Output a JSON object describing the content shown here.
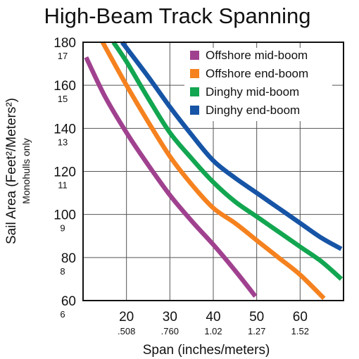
{
  "chart_data": {
    "type": "line",
    "title": "High-Beam Track Spanning",
    "xlabel": "Span (inches/meters)",
    "ylabel": "Sail Area (Feet²/Meters²)",
    "ylabel_sub": "Monohulls only",
    "xlim": [
      10,
      70
    ],
    "ylim": [
      60,
      180
    ],
    "x_ticks": [
      {
        "value": 20,
        "label": "20",
        "sub": ".508"
      },
      {
        "value": 30,
        "label": "30",
        "sub": ".760"
      },
      {
        "value": 40,
        "label": "40",
        "sub": "1.02"
      },
      {
        "value": 50,
        "label": "50",
        "sub": "1.27"
      },
      {
        "value": 60,
        "label": "60",
        "sub": "1.52"
      }
    ],
    "y_ticks": [
      {
        "value": 180,
        "label": "180",
        "sub": "17"
      },
      {
        "value": 160,
        "label": "160",
        "sub": "15"
      },
      {
        "value": 140,
        "label": "140",
        "sub": "13"
      },
      {
        "value": 120,
        "label": "120",
        "sub": "11"
      },
      {
        "value": 100,
        "label": "100",
        "sub": "9"
      },
      {
        "value": 80,
        "label": "80",
        "sub": "8"
      },
      {
        "value": 60,
        "label": "60",
        "sub": "6"
      }
    ],
    "grid": true,
    "legend_position": "top-right",
    "series": [
      {
        "name": "Offshore mid-boom",
        "color": "#a0418f",
        "points": [
          [
            10.7,
            173
          ],
          [
            15,
            155
          ],
          [
            20,
            138
          ],
          [
            25,
            123
          ],
          [
            30,
            109
          ],
          [
            35,
            97
          ],
          [
            40,
            86
          ],
          [
            45,
            74
          ],
          [
            49.7,
            62
          ]
        ]
      },
      {
        "name": "Offshore end-boom",
        "color": "#f5821f",
        "points": [
          [
            14.5,
            180
          ],
          [
            20,
            160
          ],
          [
            25,
            143
          ],
          [
            30,
            127
          ],
          [
            35,
            114
          ],
          [
            40,
            103
          ],
          [
            45,
            96
          ],
          [
            50,
            88
          ],
          [
            55,
            80
          ],
          [
            60,
            72
          ],
          [
            65.5,
            61
          ]
        ]
      },
      {
        "name": "Dinghy mid-boom",
        "color": "#12a650",
        "points": [
          [
            17,
            180
          ],
          [
            20,
            171
          ],
          [
            25,
            154
          ],
          [
            30,
            138
          ],
          [
            35,
            126
          ],
          [
            40,
            115
          ],
          [
            45,
            106
          ],
          [
            50,
            99
          ],
          [
            55,
            92
          ],
          [
            60,
            85
          ],
          [
            65,
            78
          ],
          [
            69.5,
            70
          ]
        ]
      },
      {
        "name": "Dinghy end-boom",
        "color": "#1654a6",
        "points": [
          [
            19,
            180
          ],
          [
            25,
            164
          ],
          [
            30,
            150
          ],
          [
            35,
            137
          ],
          [
            40,
            125
          ],
          [
            45,
            117
          ],
          [
            50,
            110
          ],
          [
            55,
            103
          ],
          [
            60,
            96
          ],
          [
            65,
            89
          ],
          [
            69.5,
            84
          ]
        ]
      }
    ]
  }
}
